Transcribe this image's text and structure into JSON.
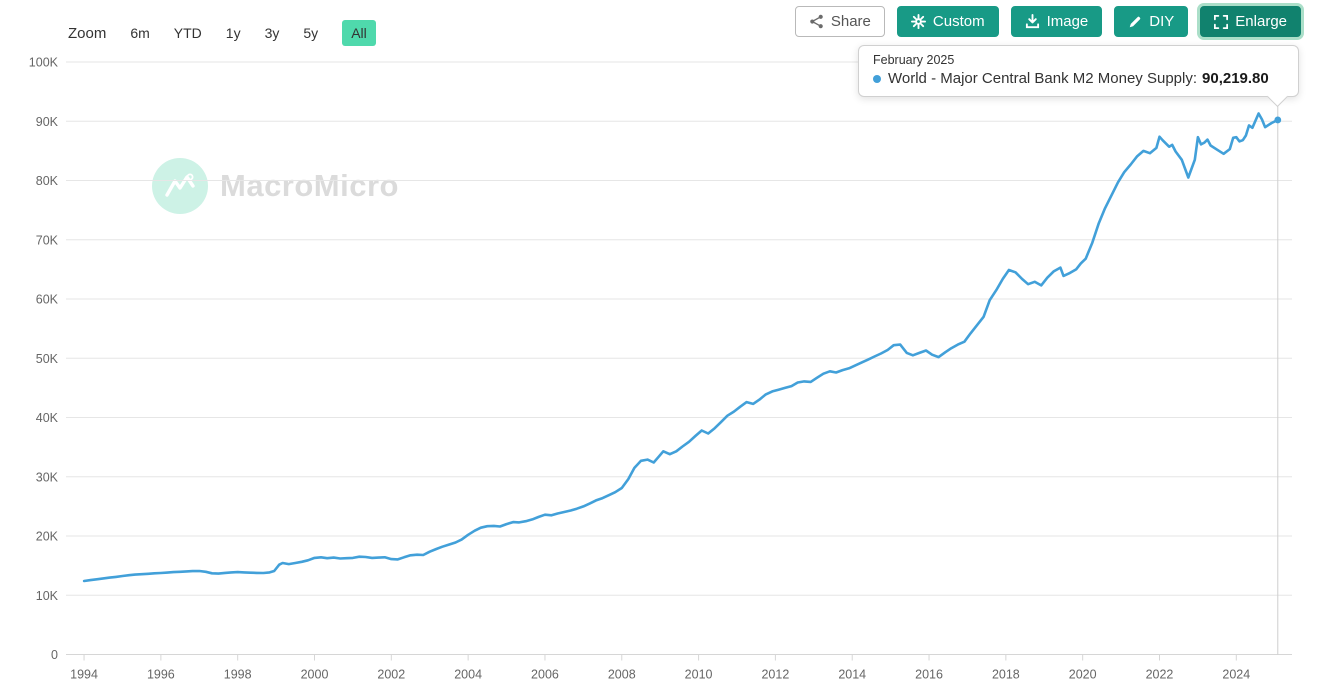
{
  "toolbar": {
    "zoom_label": "Zoom",
    "ranges": [
      "6m",
      "YTD",
      "1y",
      "3y",
      "5y",
      "All"
    ],
    "active_range": "All",
    "buttons": {
      "share": "Share",
      "custom": "Custom",
      "image": "Image",
      "diy": "DIY",
      "enlarge": "Enlarge"
    }
  },
  "tooltip": {
    "date": "February 2025",
    "series_label": "World - Major Central Bank M2 Money Supply:",
    "value": "90,219.80",
    "marker_color": "#42a0d9"
  },
  "watermark": {
    "text": "MacroMicro"
  },
  "colors": {
    "line": "#42a0d9",
    "teal_button": "#189a86",
    "active_range_bg": "#4fd9ac",
    "gridline": "#e6e6e6",
    "axis_line": "#d6d6d6",
    "axis_label": "#666666",
    "crosshair": "#cfcfcf"
  },
  "chart_data": {
    "type": "line",
    "title": "",
    "xlabel": "",
    "ylabel": "",
    "grid": "horizontal",
    "x_range": [
      1993.53,
      2025.45
    ],
    "y_range": [
      0,
      100000
    ],
    "y_tick_values": [
      0,
      10000,
      20000,
      30000,
      40000,
      50000,
      60000,
      70000,
      80000,
      90000,
      100000
    ],
    "y_tick_labels": [
      "0",
      "10K",
      "20K",
      "30K",
      "40K",
      "50K",
      "60K",
      "70K",
      "80K",
      "90K",
      "100K"
    ],
    "x_tick_years": [
      1994,
      1996,
      1998,
      2000,
      2002,
      2004,
      2006,
      2008,
      2010,
      2012,
      2014,
      2016,
      2018,
      2020,
      2022,
      2024
    ],
    "hover_point": {
      "x": 2025.08,
      "y": 90219.8,
      "date": "February 2025",
      "value_label": "90,219.80"
    },
    "series": [
      {
        "name": "World - Major Central Bank M2 Money Supply",
        "color": "#42a0d9",
        "points": [
          [
            1994.0,
            12400
          ],
          [
            1994.17,
            12550
          ],
          [
            1994.33,
            12700
          ],
          [
            1994.5,
            12850
          ],
          [
            1994.67,
            12980
          ],
          [
            1994.83,
            13100
          ],
          [
            1995.0,
            13250
          ],
          [
            1995.17,
            13380
          ],
          [
            1995.33,
            13480
          ],
          [
            1995.5,
            13550
          ],
          [
            1995.67,
            13620
          ],
          [
            1995.83,
            13700
          ],
          [
            1996.0,
            13760
          ],
          [
            1996.17,
            13820
          ],
          [
            1996.33,
            13900
          ],
          [
            1996.5,
            13950
          ],
          [
            1996.67,
            14020
          ],
          [
            1996.83,
            14080
          ],
          [
            1997.0,
            14100
          ],
          [
            1997.17,
            13950
          ],
          [
            1997.33,
            13700
          ],
          [
            1997.5,
            13650
          ],
          [
            1997.67,
            13780
          ],
          [
            1997.83,
            13850
          ],
          [
            1998.0,
            13900
          ],
          [
            1998.17,
            13850
          ],
          [
            1998.33,
            13800
          ],
          [
            1998.5,
            13780
          ],
          [
            1998.67,
            13760
          ],
          [
            1998.83,
            13850
          ],
          [
            1998.95,
            14100
          ],
          [
            1999.08,
            15150
          ],
          [
            1999.17,
            15450
          ],
          [
            1999.33,
            15250
          ],
          [
            1999.5,
            15450
          ],
          [
            1999.67,
            15650
          ],
          [
            1999.83,
            15900
          ],
          [
            2000.0,
            16300
          ],
          [
            2000.17,
            16400
          ],
          [
            2000.33,
            16250
          ],
          [
            2000.5,
            16350
          ],
          [
            2000.67,
            16200
          ],
          [
            2000.83,
            16250
          ],
          [
            2001.0,
            16300
          ],
          [
            2001.17,
            16500
          ],
          [
            2001.33,
            16450
          ],
          [
            2001.5,
            16300
          ],
          [
            2001.67,
            16350
          ],
          [
            2001.83,
            16400
          ],
          [
            2002.0,
            16100
          ],
          [
            2002.17,
            16050
          ],
          [
            2002.33,
            16400
          ],
          [
            2002.5,
            16750
          ],
          [
            2002.67,
            16850
          ],
          [
            2002.83,
            16800
          ],
          [
            2003.0,
            17350
          ],
          [
            2003.17,
            17800
          ],
          [
            2003.33,
            18200
          ],
          [
            2003.5,
            18550
          ],
          [
            2003.67,
            18900
          ],
          [
            2003.83,
            19400
          ],
          [
            2004.0,
            20200
          ],
          [
            2004.17,
            20900
          ],
          [
            2004.33,
            21400
          ],
          [
            2004.5,
            21650
          ],
          [
            2004.67,
            21700
          ],
          [
            2004.83,
            21600
          ],
          [
            2005.0,
            22000
          ],
          [
            2005.17,
            22350
          ],
          [
            2005.33,
            22300
          ],
          [
            2005.5,
            22500
          ],
          [
            2005.67,
            22800
          ],
          [
            2005.83,
            23200
          ],
          [
            2006.0,
            23600
          ],
          [
            2006.17,
            23500
          ],
          [
            2006.33,
            23800
          ],
          [
            2006.5,
            24050
          ],
          [
            2006.67,
            24300
          ],
          [
            2006.83,
            24600
          ],
          [
            2007.0,
            25000
          ],
          [
            2007.17,
            25500
          ],
          [
            2007.33,
            26000
          ],
          [
            2007.5,
            26400
          ],
          [
            2007.67,
            26900
          ],
          [
            2007.83,
            27400
          ],
          [
            2008.0,
            28100
          ],
          [
            2008.17,
            29600
          ],
          [
            2008.33,
            31500
          ],
          [
            2008.5,
            32700
          ],
          [
            2008.67,
            32900
          ],
          [
            2008.83,
            32400
          ],
          [
            2008.95,
            33300
          ],
          [
            2009.08,
            34300
          ],
          [
            2009.25,
            33800
          ],
          [
            2009.42,
            34300
          ],
          [
            2009.58,
            35100
          ],
          [
            2009.75,
            35900
          ],
          [
            2009.92,
            36900
          ],
          [
            2010.08,
            37800
          ],
          [
            2010.25,
            37300
          ],
          [
            2010.42,
            38200
          ],
          [
            2010.58,
            39200
          ],
          [
            2010.75,
            40300
          ],
          [
            2010.92,
            41000
          ],
          [
            2011.08,
            41800
          ],
          [
            2011.25,
            42600
          ],
          [
            2011.42,
            42300
          ],
          [
            2011.58,
            43000
          ],
          [
            2011.75,
            43900
          ],
          [
            2011.92,
            44400
          ],
          [
            2012.08,
            44700
          ],
          [
            2012.25,
            45000
          ],
          [
            2012.42,
            45300
          ],
          [
            2012.58,
            45900
          ],
          [
            2012.75,
            46100
          ],
          [
            2012.92,
            46000
          ],
          [
            2013.08,
            46700
          ],
          [
            2013.25,
            47400
          ],
          [
            2013.42,
            47800
          ],
          [
            2013.58,
            47600
          ],
          [
            2013.75,
            48000
          ],
          [
            2013.92,
            48300
          ],
          [
            2014.08,
            48800
          ],
          [
            2014.25,
            49300
          ],
          [
            2014.42,
            49800
          ],
          [
            2014.58,
            50300
          ],
          [
            2014.75,
            50800
          ],
          [
            2014.92,
            51400
          ],
          [
            2015.08,
            52200
          ],
          [
            2015.25,
            52300
          ],
          [
            2015.42,
            50900
          ],
          [
            2015.58,
            50500
          ],
          [
            2015.75,
            50900
          ],
          [
            2015.92,
            51300
          ],
          [
            2016.08,
            50600
          ],
          [
            2016.25,
            50200
          ],
          [
            2016.42,
            51000
          ],
          [
            2016.58,
            51700
          ],
          [
            2016.75,
            52300
          ],
          [
            2016.92,
            52800
          ],
          [
            2017.08,
            54200
          ],
          [
            2017.25,
            55600
          ],
          [
            2017.42,
            57000
          ],
          [
            2017.58,
            59800
          ],
          [
            2017.75,
            61500
          ],
          [
            2017.92,
            63400
          ],
          [
            2018.08,
            64900
          ],
          [
            2018.25,
            64500
          ],
          [
            2018.42,
            63400
          ],
          [
            2018.58,
            62500
          ],
          [
            2018.75,
            62900
          ],
          [
            2018.92,
            62300
          ],
          [
            2019.08,
            63600
          ],
          [
            2019.25,
            64700
          ],
          [
            2019.42,
            65300
          ],
          [
            2019.5,
            63900
          ],
          [
            2019.67,
            64400
          ],
          [
            2019.83,
            65000
          ],
          [
            2019.95,
            66000
          ],
          [
            2020.08,
            66800
          ],
          [
            2020.25,
            69500
          ],
          [
            2020.42,
            72800
          ],
          [
            2020.58,
            75300
          ],
          [
            2020.75,
            77500
          ],
          [
            2020.92,
            79700
          ],
          [
            2021.08,
            81400
          ],
          [
            2021.25,
            82700
          ],
          [
            2021.42,
            84100
          ],
          [
            2021.58,
            85000
          ],
          [
            2021.75,
            84600
          ],
          [
            2021.92,
            85500
          ],
          [
            2022.0,
            87400
          ],
          [
            2022.08,
            86800
          ],
          [
            2022.25,
            85700
          ],
          [
            2022.33,
            86000
          ],
          [
            2022.42,
            84900
          ],
          [
            2022.58,
            83500
          ],
          [
            2022.75,
            80500
          ],
          [
            2022.92,
            83500
          ],
          [
            2023.0,
            87300
          ],
          [
            2023.08,
            86100
          ],
          [
            2023.17,
            86400
          ],
          [
            2023.25,
            86900
          ],
          [
            2023.33,
            85900
          ],
          [
            2023.5,
            85200
          ],
          [
            2023.67,
            84500
          ],
          [
            2023.83,
            85300
          ],
          [
            2023.92,
            87200
          ],
          [
            2024.0,
            87300
          ],
          [
            2024.08,
            86600
          ],
          [
            2024.17,
            86800
          ],
          [
            2024.25,
            87600
          ],
          [
            2024.33,
            89300
          ],
          [
            2024.42,
            88900
          ],
          [
            2024.58,
            91300
          ],
          [
            2024.67,
            90300
          ],
          [
            2024.75,
            89000
          ],
          [
            2024.92,
            89700
          ],
          [
            2025.08,
            90219.8
          ]
        ]
      }
    ]
  }
}
